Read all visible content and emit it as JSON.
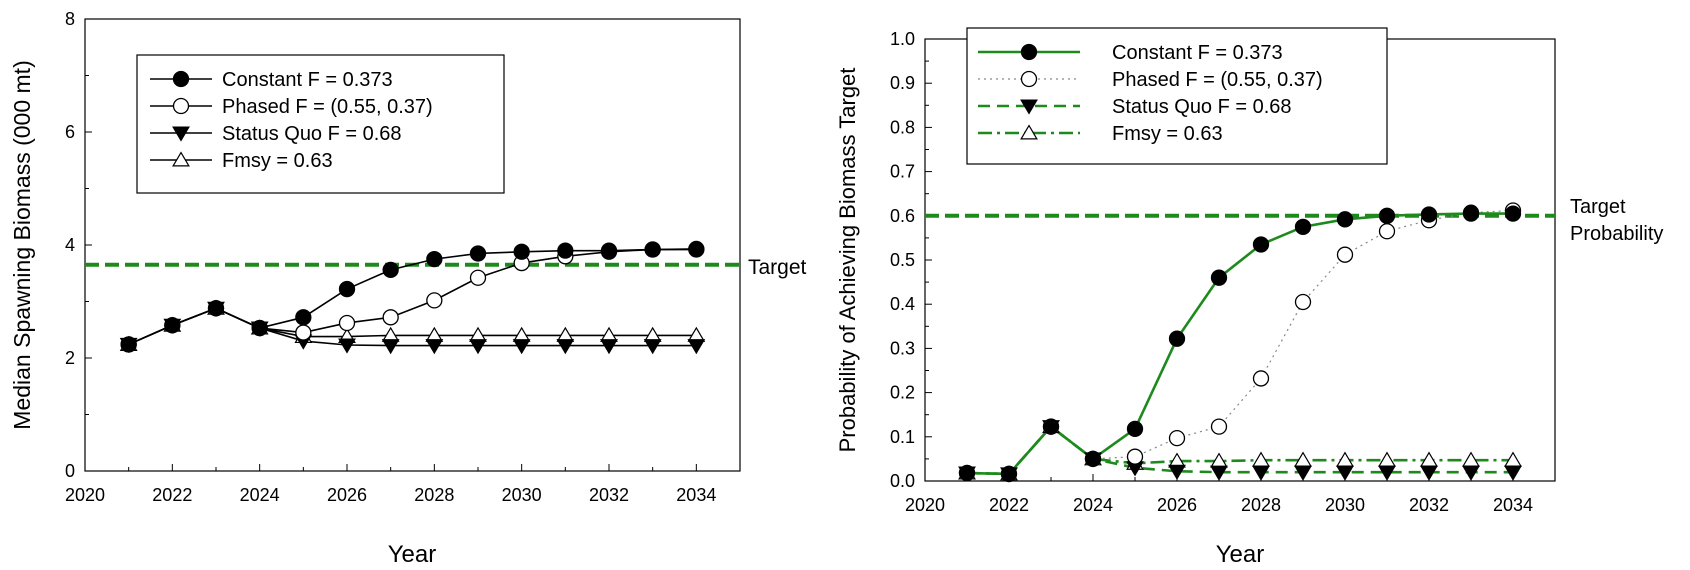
{
  "chart_data": [
    {
      "type": "line",
      "title": "",
      "xlabel": "Year",
      "ylabel": "Median Spawning Biomass (000 mt)",
      "xlim": [
        2020,
        2035
      ],
      "ylim": [
        0,
        8
      ],
      "xticks": [
        2020,
        2022,
        2024,
        2026,
        2028,
        2030,
        2032,
        2034
      ],
      "yticks": [
        0,
        2,
        4,
        6,
        8
      ],
      "reference_line": {
        "value": 3.65,
        "label": "Target",
        "color": "#1e8a1e"
      },
      "legend_position": "top-left",
      "x": [
        2021,
        2022,
        2023,
        2024,
        2025,
        2026,
        2027,
        2028,
        2029,
        2030,
        2031,
        2032,
        2033,
        2034
      ],
      "series": [
        {
          "name": "Constant F = 0.373",
          "marker": "filled-circle",
          "color": "#000000",
          "values": [
            2.24,
            2.58,
            2.88,
            2.53,
            2.72,
            3.22,
            3.56,
            3.75,
            3.85,
            3.88,
            3.9,
            3.9,
            3.92,
            3.92
          ]
        },
        {
          "name": "Phased F = (0.55, 0.37)",
          "marker": "open-circle",
          "color": "#000000",
          "values": [
            2.24,
            2.58,
            2.88,
            2.53,
            2.45,
            2.62,
            2.72,
            3.02,
            3.42,
            3.68,
            3.8,
            3.88,
            3.92,
            3.93
          ]
        },
        {
          "name": "Status Quo F = 0.68",
          "marker": "filled-triangle-down",
          "color": "#000000",
          "values": [
            2.24,
            2.58,
            2.88,
            2.53,
            2.3,
            2.23,
            2.22,
            2.22,
            2.22,
            2.22,
            2.22,
            2.22,
            2.22,
            2.22
          ]
        },
        {
          "name": "Fmsy = 0.63",
          "marker": "open-triangle-up",
          "color": "#000000",
          "values": [
            2.24,
            2.58,
            2.88,
            2.53,
            2.38,
            2.38,
            2.4,
            2.4,
            2.4,
            2.4,
            2.4,
            2.4,
            2.4,
            2.4
          ]
        }
      ]
    },
    {
      "type": "line",
      "title": "",
      "xlabel": "Year",
      "ylabel": "Probability of Achieving Biomass Target",
      "xlim": [
        2020,
        2035
      ],
      "ylim": [
        0,
        1
      ],
      "xticks": [
        2020,
        2022,
        2024,
        2026,
        2028,
        2030,
        2032,
        2034
      ],
      "yticks": [
        0.0,
        0.1,
        0.2,
        0.3,
        0.4,
        0.5,
        0.6,
        0.7,
        0.8,
        0.9,
        1.0
      ],
      "reference_line": {
        "value": 0.6,
        "label_lines": [
          "Target",
          "Probability"
        ],
        "color": "#1e8a1e"
      },
      "legend_position": "top",
      "x": [
        2021,
        2022,
        2023,
        2024,
        2025,
        2026,
        2027,
        2028,
        2029,
        2030,
        2031,
        2032,
        2033,
        2034
      ],
      "series": [
        {
          "name": "Constant F = 0.373",
          "marker": "filled-circle",
          "color": "#1e8a1e",
          "line": "solid",
          "values": [
            0.018,
            0.016,
            0.123,
            0.05,
            0.118,
            0.322,
            0.46,
            0.535,
            0.575,
            0.592,
            0.6,
            0.603,
            0.605,
            0.605
          ]
        },
        {
          "name": "Phased F = (0.55, 0.37)",
          "marker": "open-circle",
          "color": "#888888",
          "line": "dotted",
          "values": [
            0.018,
            0.016,
            0.123,
            0.05,
            0.055,
            0.097,
            0.123,
            0.232,
            0.405,
            0.512,
            0.565,
            0.59,
            0.607,
            0.612
          ]
        },
        {
          "name": "Status Quo F = 0.68",
          "marker": "filled-triangle-down",
          "color": "#1e8a1e",
          "line": "dashed",
          "values": [
            0.018,
            0.016,
            0.123,
            0.05,
            0.03,
            0.022,
            0.02,
            0.02,
            0.02,
            0.02,
            0.02,
            0.02,
            0.02,
            0.02
          ]
        },
        {
          "name": "Fmsy = 0.63",
          "marker": "open-triangle-up",
          "color": "#1e8a1e",
          "line": "dash-dot",
          "values": [
            0.018,
            0.016,
            0.123,
            0.05,
            0.04,
            0.045,
            0.045,
            0.047,
            0.047,
            0.047,
            0.047,
            0.047,
            0.047,
            0.047
          ]
        }
      ]
    }
  ]
}
